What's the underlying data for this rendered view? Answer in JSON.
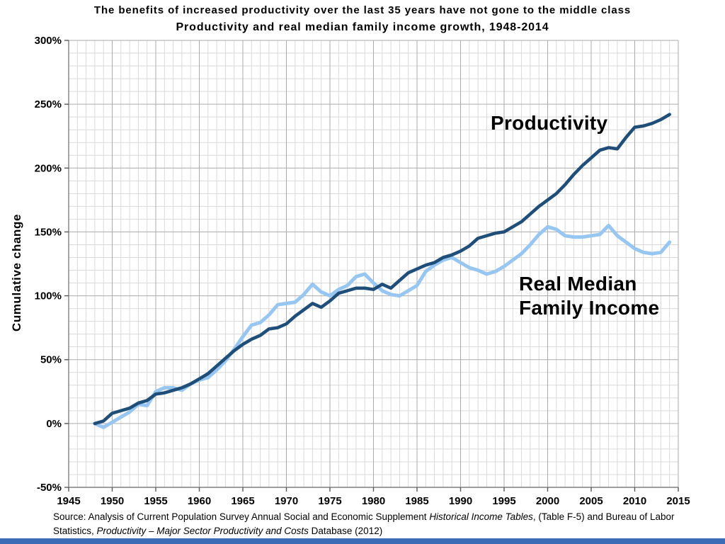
{
  "page": {
    "title_line1": "The benefits of increased productivity over the last 35 years have not gone to the middle class",
    "title_line2": "Productivity and real median family income growth, 1948-2014",
    "source": {
      "part1": "Source:  Analysis of Current Population Survey Annual Social and Economic Supplement ",
      "italic1": "Historical Income Tables",
      "part2": ", (Table F-5) and Bureau of Labor Statistics, ",
      "italic2": "Productivity – Major Sector Productivity and Costs",
      "part3": " Database (2012)"
    },
    "footer_bar_color": "#3C6CB5"
  },
  "chart_data": {
    "type": "line",
    "title": "The benefits of increased productivity over the last 35 years have not gone to the middle class",
    "subtitle": "Productivity and real median family income growth, 1948-2014",
    "xlabel": "",
    "ylabel": "Cumulative change",
    "x_range": [
      1945,
      2015
    ],
    "y_range": [
      -50,
      300
    ],
    "x_tick_step": 5,
    "x_minor_step": 1,
    "y_tick_step": 50,
    "y_minor_step": 10,
    "y_tick_suffix": "%",
    "grid": true,
    "grid_minor_color": "#D9D9D9",
    "grid_major_color": "#ABABAB",
    "axis_color": "#7F7F7F",
    "tick_color": "#595959",
    "x": [
      1948,
      1949,
      1950,
      1951,
      1952,
      1953,
      1954,
      1955,
      1956,
      1957,
      1958,
      1959,
      1960,
      1961,
      1962,
      1963,
      1964,
      1965,
      1966,
      1967,
      1968,
      1969,
      1970,
      1971,
      1972,
      1973,
      1974,
      1975,
      1976,
      1977,
      1978,
      1979,
      1980,
      1981,
      1982,
      1983,
      1984,
      1985,
      1986,
      1987,
      1988,
      1989,
      1990,
      1991,
      1992,
      1993,
      1994,
      1995,
      1996,
      1997,
      1998,
      1999,
      2000,
      2001,
      2002,
      2003,
      2004,
      2005,
      2006,
      2007,
      2008,
      2009,
      2010,
      2011,
      2012,
      2013,
      2014
    ],
    "series": [
      {
        "name": "Productivity",
        "color": "#1F4E79",
        "stroke_width": 4.6,
        "values": [
          0,
          2,
          8,
          10,
          12,
          16,
          18,
          23,
          24,
          26,
          28,
          31,
          35,
          39,
          45,
          51,
          57,
          62,
          66,
          69,
          74,
          75,
          78,
          84,
          89,
          94,
          91,
          96,
          102,
          104,
          106,
          106,
          105,
          109,
          106,
          112,
          118,
          121,
          124,
          126,
          130,
          132,
          135,
          139,
          145,
          147,
          149,
          150,
          154,
          158,
          164,
          170,
          175,
          180,
          187,
          195,
          202,
          208,
          214,
          216,
          215,
          224,
          232,
          233,
          235,
          238,
          242
        ]
      },
      {
        "name": "Real Median Family Income",
        "color": "#97C6F0",
        "stroke_width": 5,
        "values": [
          0,
          -3,
          1,
          5,
          9,
          15,
          14,
          25,
          28,
          28,
          26,
          31,
          34,
          36,
          42,
          49,
          58,
          68,
          77,
          79,
          85,
          93,
          94,
          95,
          101,
          109,
          103,
          100,
          105,
          108,
          115,
          117,
          110,
          104,
          101,
          100,
          104,
          108,
          119,
          124,
          128,
          130,
          126,
          122,
          120,
          117,
          119,
          123,
          128,
          133,
          140,
          148,
          154,
          152,
          147,
          146,
          146,
          147,
          148,
          155,
          147,
          142,
          137,
          134,
          133,
          134,
          142
        ]
      }
    ]
  }
}
